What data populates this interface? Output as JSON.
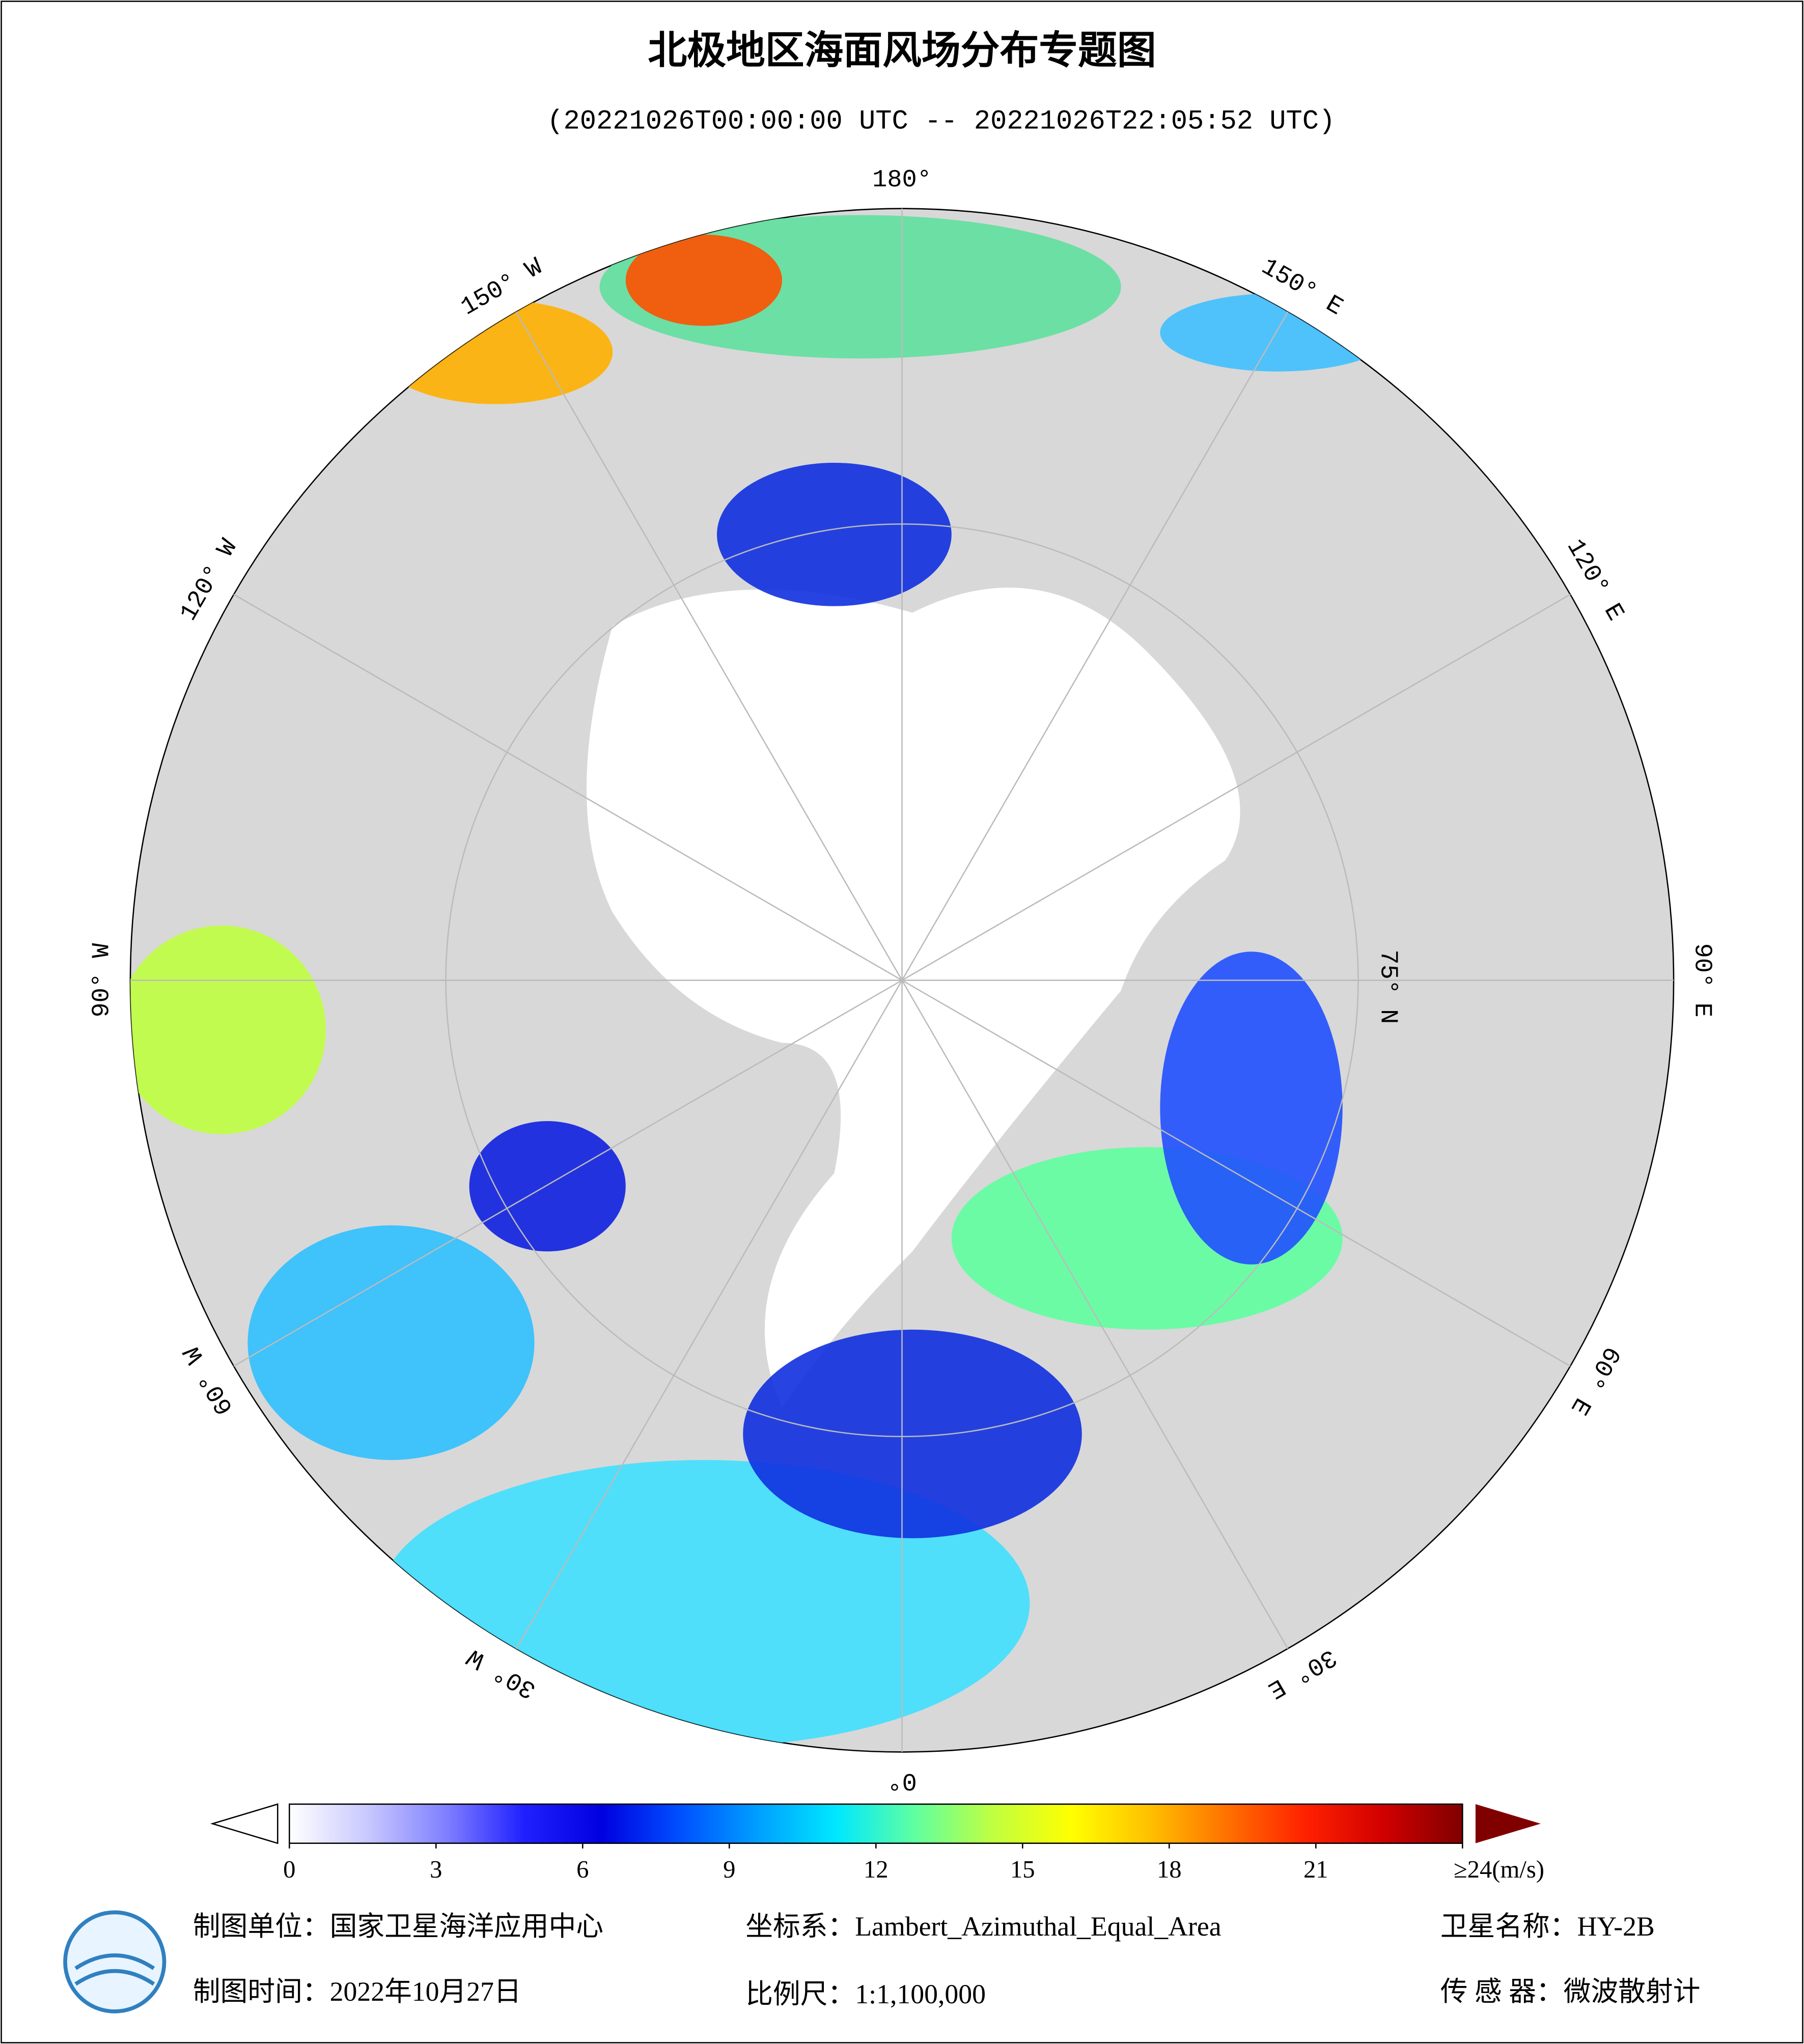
{
  "header": {
    "title": "北极地区海面风场分布专题图",
    "subtitle": "(20221026T00:00:00 UTC -- 20221026T22:05:52 UTC)"
  },
  "map": {
    "projection_labels": [
      "180°",
      "150° W",
      "120° W",
      "90° W",
      "60° W",
      "30° W",
      "0°",
      "30° E",
      "60° E",
      "90° E",
      "120° E",
      "150° E"
    ],
    "latitude_label": "75° N"
  },
  "colorbar": {
    "ticks": [
      0,
      3,
      6,
      9,
      12,
      15,
      18,
      21,
      {
        "value": 24,
        "label": "≥24(m/s)"
      }
    ],
    "lim": [
      0,
      24
    ],
    "colors": [
      "#ffffff",
      "#c8c8ff",
      "#8080ff",
      "#2020ff",
      "#0000e0",
      "#0050ff",
      "#00a0ff",
      "#00e8ff",
      "#60ffa0",
      "#c0ff40",
      "#ffff00",
      "#ffc000",
      "#ff7000",
      "#ff2000",
      "#d00000",
      "#800000"
    ]
  },
  "footer": {
    "unit": "制图单位：国家卫星海洋应用中心",
    "crs": "坐标系：Lambert_Azimuthal_Equal_Area",
    "satellite": "卫星名称：HY-2B",
    "date": "制图时间：2022年10月27日",
    "scale": "比例尺：1:1,100,000",
    "sensor": "传 感 器：微波散射计"
  }
}
